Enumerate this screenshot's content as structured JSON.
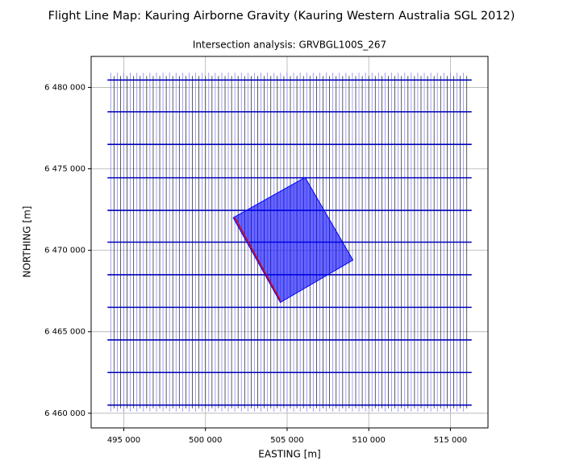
{
  "chart_data": {
    "type": "flight_lines",
    "title": "Flight Line Map: Kauring Airborne Gravity (Kauring Western Australia SGL 2012)",
    "subtitle": "Intersection analysis: GRVBGL100S_267",
    "x_label": "EASTING [m]",
    "y_label": "NORTHING [m]",
    "grid": true,
    "xlim": [
      493000,
      517300
    ],
    "ylim": [
      6459100,
      6481900
    ],
    "xticks": [
      {
        "value": 495000,
        "label": "495 000"
      },
      {
        "value": 500000,
        "label": "500 000"
      },
      {
        "value": 505000,
        "label": "505 000"
      },
      {
        "value": 510000,
        "label": "510 000"
      },
      {
        "value": 515000,
        "label": "515 000"
      }
    ],
    "yticks": [
      {
        "value": 6460000,
        "label": "6 460 000"
      },
      {
        "value": 6465000,
        "label": "6 465 000"
      },
      {
        "value": 6470000,
        "label": "6 470 000"
      },
      {
        "value": 6475000,
        "label": "6 475 000"
      },
      {
        "value": 6480000,
        "label": "6 480 000"
      }
    ],
    "traverse_lines": [
      {
        "color": "#8888ff",
        "y_from": 6460100,
        "y_to": 6480900,
        "x": [
          494200,
          494600,
          495000,
          495400,
          495800,
          496200,
          496600,
          497000,
          497400,
          497800,
          498200,
          498600,
          499000,
          499400,
          499800,
          500200,
          500600,
          501000,
          501400,
          501800,
          502200,
          502600,
          503000,
          503400,
          503800,
          504200,
          504600,
          505000,
          505400,
          505800,
          506200,
          506600,
          507000,
          507400,
          507800,
          508200,
          508600,
          509000,
          509400,
          509800,
          510200,
          510600,
          511000,
          511400,
          511800,
          512200,
          512600,
          513000,
          513400,
          513800,
          514200,
          514600,
          515000,
          515400,
          515800
        ]
      },
      {
        "color": "#333333",
        "y_from": 6460300,
        "y_to": 6480700,
        "x": [
          494400,
          494800,
          495200,
          495600,
          496000,
          496400,
          496800,
          497200,
          497600,
          498000,
          498400,
          498800,
          499200,
          499600,
          500000,
          500400,
          500800,
          501200,
          501600,
          502000,
          502400,
          502800,
          503200,
          503600,
          504000,
          504400,
          504800,
          505200,
          505600,
          506000,
          506400,
          506800,
          507200,
          507600,
          508000,
          508400,
          508800,
          509200,
          509600,
          510000,
          510400,
          510800,
          511200,
          511600,
          512000,
          512400,
          512800,
          513200,
          513600,
          514000,
          514400,
          514800,
          515200,
          515600,
          516000
        ]
      }
    ],
    "tie_lines": {
      "color": "#0000bb",
      "x_from": 494000,
      "x_to": 516300,
      "y": [
        6460500,
        6462500,
        6464500,
        6466500,
        6468500,
        6470500,
        6472450,
        6474450,
        6476500,
        6478500,
        6480450
      ]
    },
    "polygon": {
      "color": "#0000ff",
      "x": [
        501700,
        506100,
        509030,
        504585
      ],
      "y": [
        6472000,
        6474470,
        6469400,
        6466800
      ]
    },
    "selected_line": {
      "color": "#dd0000",
      "x": [
        501800,
        504600
      ],
      "y": [
        6472000,
        6466900
      ]
    }
  }
}
